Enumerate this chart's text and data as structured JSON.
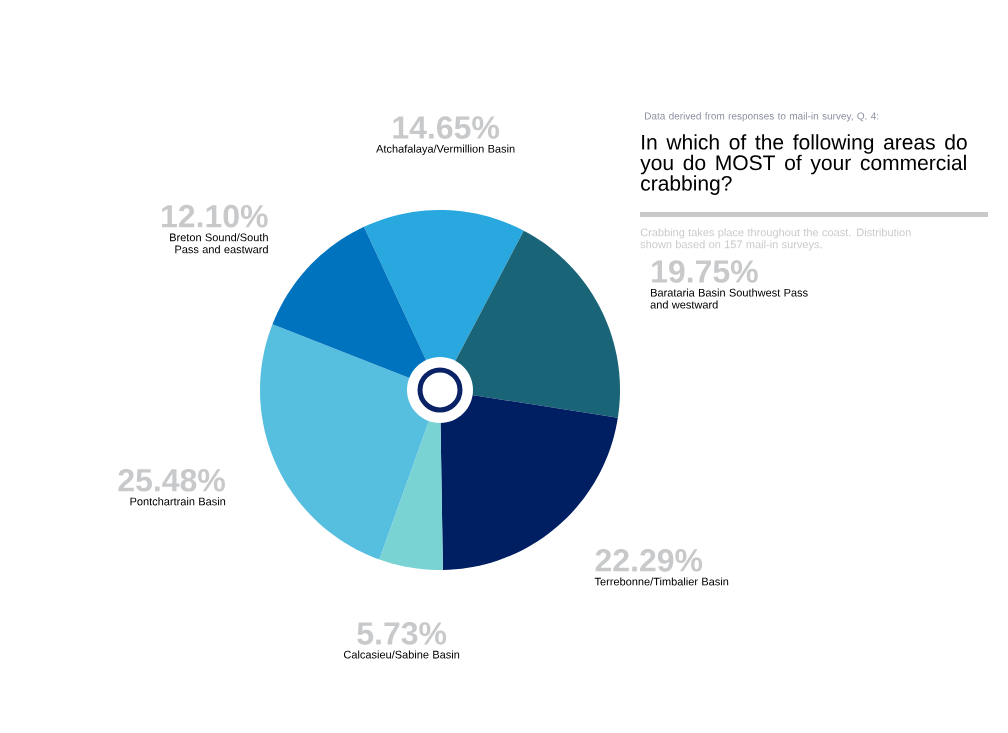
{
  "chart_data": {
    "type": "pie",
    "subtitle": "Data derived from responses to mail-in survey, Q. 4:",
    "title": "In which of the following areas do you do MOST of your commercial crabbing?",
    "annotations": [
      "Crabbing takes place throughout the coast. Distribution shown based on 157 mail-in surveys."
    ],
    "categories": [
      "Atchafalaya/Vermillion Basin",
      "Barataria Basin Southwest Pass and westward",
      "Terrebonne/Timbalier Basin",
      "Calcasieu/Sabine Basin",
      "Pontchartrain Basin",
      "Breton Sound/South Pass and eastward"
    ],
    "values": [
      14.65,
      19.75,
      22.29,
      5.73,
      25.48,
      12.1
    ],
    "value_labels": [
      "14.65%",
      "19.75%",
      "22.29%",
      "5.73%",
      "25.48%",
      "12.10%"
    ],
    "colors": [
      "#29a8e0",
      "#1a6478",
      "#001f63",
      "#7ad3d3",
      "#56bfdf",
      "#0073bf"
    ]
  }
}
